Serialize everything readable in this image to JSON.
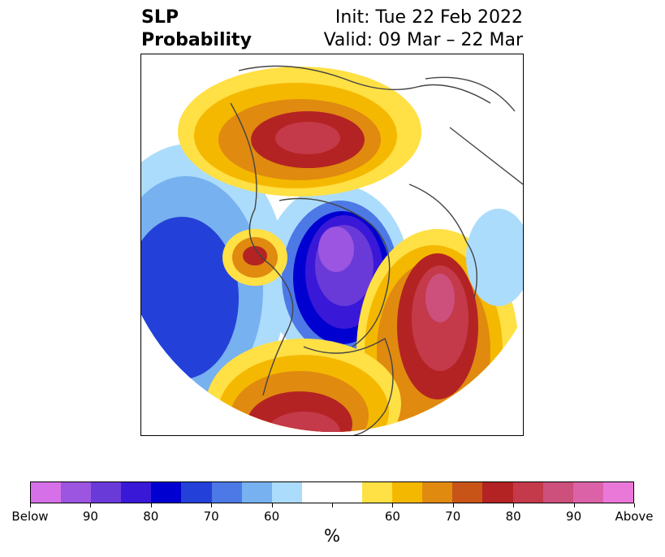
{
  "title": {
    "left_line1": "SLP",
    "left_line2": "Probability",
    "right_line1": "Init: Tue 22 Feb 2022",
    "right_line2": "Valid: 09 Mar – 22 Mar"
  },
  "colorbar": {
    "colors": [
      "#d670e8",
      "#9b55e0",
      "#6a3ad8",
      "#3a18d8",
      "#0000d0",
      "#2341d8",
      "#4d79e6",
      "#77b1f0",
      "#acdcfb",
      "#ffffff",
      "#ffffff",
      "#ffe045",
      "#f5b800",
      "#e08a10",
      "#c85418",
      "#b42323",
      "#c43a4a",
      "#cc4f7c",
      "#dc62a8",
      "#ea78d8"
    ],
    "labels": [
      "Below",
      "90",
      "80",
      "70",
      "60",
      "",
      "60",
      "70",
      "80",
      "90",
      "Above"
    ],
    "unit": "%"
  },
  "map": {
    "projection": "north-polar-stereographic",
    "variable": "SLP probability"
  }
}
